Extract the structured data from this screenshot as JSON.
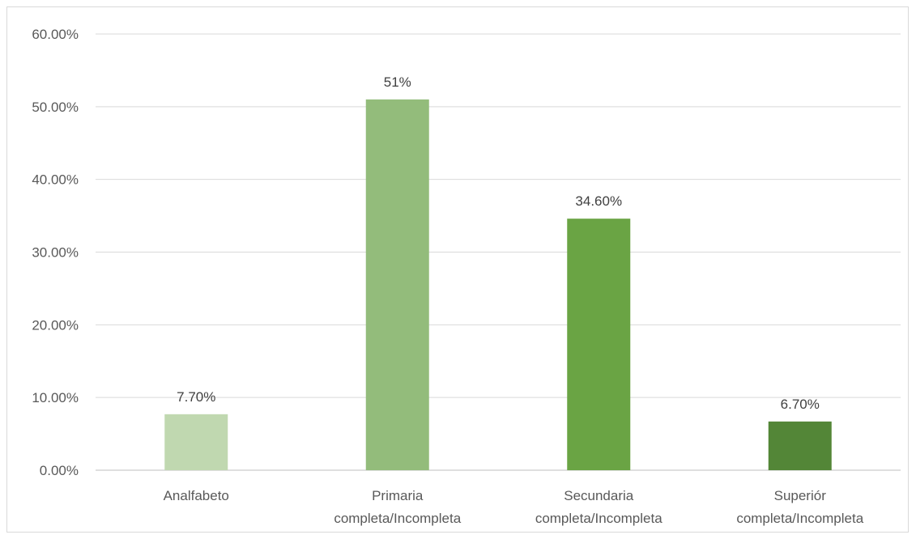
{
  "chart_data": {
    "type": "bar",
    "categories": [
      [
        "Analfabeto"
      ],
      [
        "Primaria",
        "completa/Incompleta"
      ],
      [
        "Secundaria",
        "completa/Incompleta"
      ],
      [
        "Superiór",
        "completa/Incompleta"
      ]
    ],
    "values": [
      7.7,
      51,
      34.6,
      6.7
    ],
    "data_labels": [
      "7.70%",
      "51%",
      "34.60%",
      "6.70%"
    ],
    "colors": [
      "#c0d8b0",
      "#93bc7b",
      "#6aa444",
      "#538637"
    ],
    "ylim": [
      0,
      60
    ],
    "yticks": [
      0,
      10,
      20,
      30,
      40,
      50,
      60
    ],
    "ytick_labels": [
      "0.00%",
      "10.00%",
      "20.00%",
      "30.00%",
      "40.00%",
      "50.00%",
      "60.00%"
    ],
    "grid": true,
    "title": "",
    "xlabel": "",
    "ylabel": ""
  }
}
